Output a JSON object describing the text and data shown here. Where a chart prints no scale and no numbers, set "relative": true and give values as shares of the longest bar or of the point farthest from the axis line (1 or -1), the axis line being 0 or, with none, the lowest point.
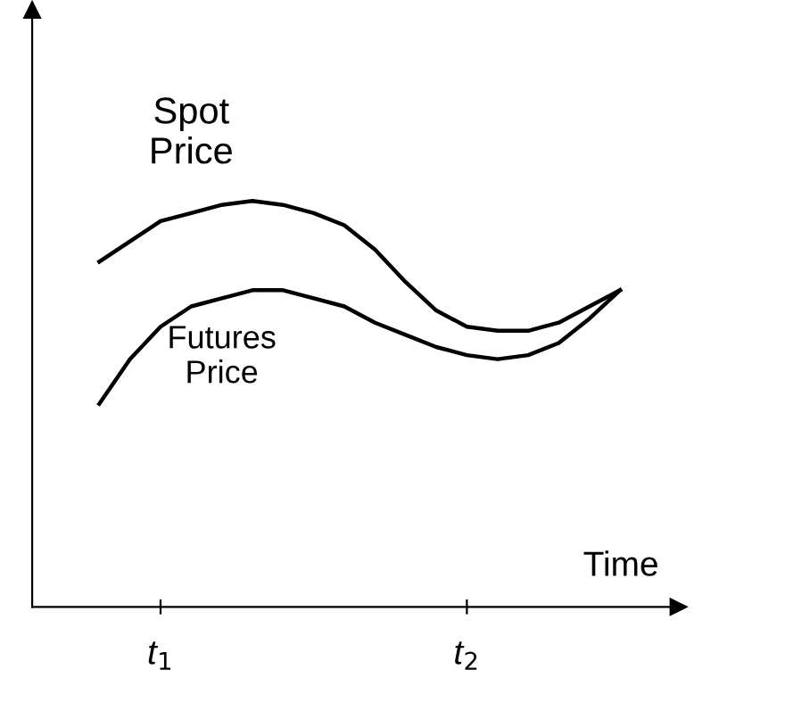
{
  "chart_data": {
    "type": "line",
    "relative": true,
    "xlabel": "Time",
    "categories": [
      null,
      null,
      "t$_{1}$",
      null,
      null,
      null,
      null,
      null,
      null,
      null,
      null,
      null,
      "t$_{2}$",
      null,
      null,
      null,
      null,
      null
    ],
    "series": [
      {
        "name": "Spot Price",
        "color": "#000000",
        "values": [
          0.85,
          0.9,
          0.95,
          0.97,
          0.99,
          1.0,
          0.99,
          0.97,
          0.94,
          0.88,
          0.8,
          0.73,
          0.69,
          0.68,
          0.68,
          0.7,
          0.74,
          0.78
        ]
      },
      {
        "name": "Futures Price",
        "color": "#000000",
        "values": [
          0.5,
          0.61,
          0.69,
          0.74,
          0.76,
          0.78,
          0.78,
          0.76,
          0.74,
          0.7,
          0.67,
          0.64,
          0.62,
          0.61,
          0.62,
          0.65,
          0.71,
          0.78
        ]
      }
    ],
    "grid": false,
    "legend": false,
    "marker": "none",
    "line_style": "solid"
  }
}
